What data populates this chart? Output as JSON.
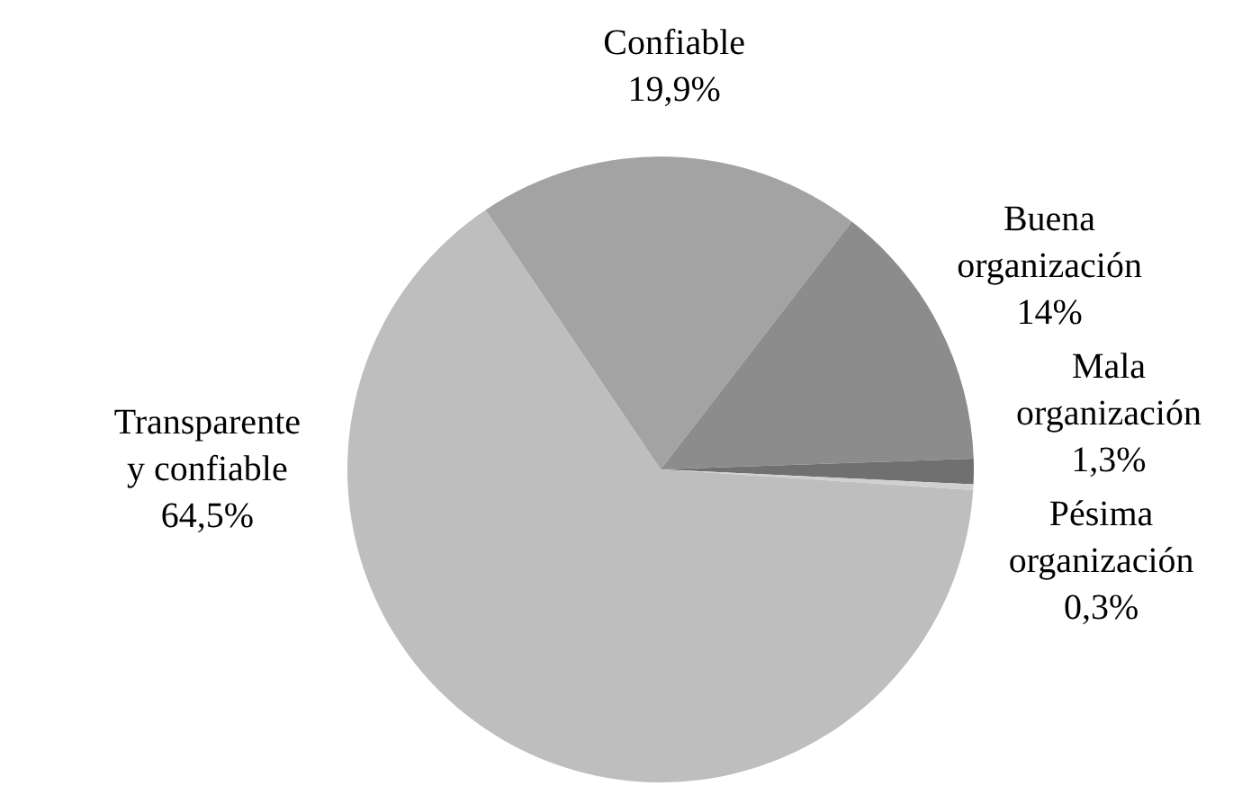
{
  "chart_data": {
    "type": "pie",
    "categories": [
      "Confiable",
      "Buena organización",
      "Mala organización",
      "Pésima organización",
      "Transparente y confiable"
    ],
    "values": [
      19.9,
      14,
      1.3,
      0.3,
      64.5
    ],
    "colors": [
      "#a3a3a3",
      "#8c8c8c",
      "#707070",
      "#d0d0d0",
      "#bebebe"
    ],
    "value_labels": [
      "19,9%",
      "14%",
      "1,3%",
      "0,3%",
      "64,5%"
    ]
  }
}
